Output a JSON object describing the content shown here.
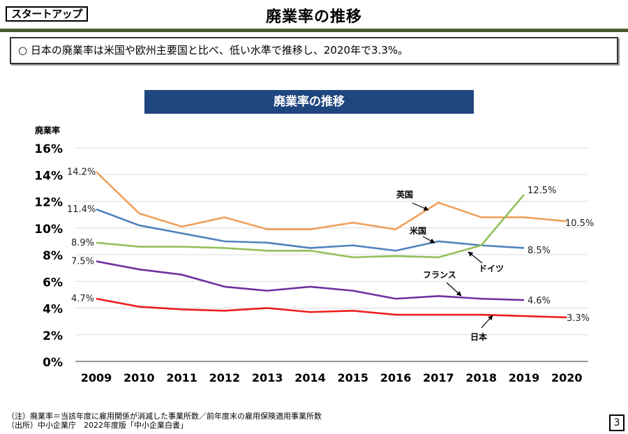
{
  "header": {
    "tag": "スタートアップ",
    "title": "廃業率の推移"
  },
  "summary": "○ 日本の廃業率は米国や欧州主要国と比べ、低い水準で推移し、2020年で3.3%。",
  "chart_data": {
    "type": "line",
    "title": "廃業率の推移",
    "ylabel": "廃業率",
    "xlabel": "",
    "ylim": [
      0,
      16
    ],
    "yticks": [
      0,
      2,
      4,
      6,
      8,
      10,
      12,
      14,
      16
    ],
    "ytick_labels": [
      "0%",
      "2%",
      "4%",
      "6%",
      "8%",
      "10%",
      "12%",
      "14%",
      "16%"
    ],
    "grid": true,
    "legend": "inline-annotations",
    "categories": [
      "2009",
      "2010",
      "2011",
      "2012",
      "2013",
      "2014",
      "2015",
      "2016",
      "2017",
      "2018",
      "2019",
      "2020"
    ],
    "series": [
      {
        "name": "英国",
        "color": "#f0a05a",
        "values": [
          14.2,
          11.1,
          10.1,
          10.8,
          9.9,
          9.9,
          10.4,
          9.9,
          11.9,
          10.8,
          10.8,
          10.5
        ],
        "start_label": "14.2%",
        "end_label": "10.5%"
      },
      {
        "name": "米国",
        "color": "#4f81bd",
        "values": [
          11.4,
          10.2,
          9.6,
          9.0,
          8.9,
          8.5,
          8.7,
          8.3,
          9.0,
          8.7,
          8.5,
          null
        ],
        "start_label": "11.4%",
        "end_label": "8.5%"
      },
      {
        "name": "ドイツ",
        "color": "#92c05a",
        "values": [
          8.9,
          8.6,
          8.6,
          8.5,
          8.3,
          8.3,
          7.8,
          7.9,
          7.8,
          8.7,
          12.5,
          null
        ],
        "start_label": "8.9%",
        "end_label": "12.5%"
      },
      {
        "name": "フランス",
        "color": "#7030a0",
        "values": [
          7.5,
          6.9,
          6.5,
          5.6,
          5.3,
          5.6,
          5.3,
          4.7,
          4.9,
          4.7,
          4.6,
          null
        ],
        "start_label": "7.5%",
        "end_label": "4.6%"
      },
      {
        "name": "日本",
        "color": "#ee1c1c",
        "values": [
          4.7,
          4.1,
          3.9,
          3.8,
          4.0,
          3.7,
          3.8,
          3.5,
          3.5,
          3.5,
          3.4,
          3.3
        ],
        "start_label": "4.7%",
        "end_label": "3.3%"
      }
    ]
  },
  "footer": {
    "note": "（注）廃業率＝当該年度に雇用関係が消滅した事業所数／前年度末の雇用保険適用事業所数",
    "source": "（出所）中小企業庁　2022年度版「中小企業白書」",
    "page_number": "3"
  }
}
